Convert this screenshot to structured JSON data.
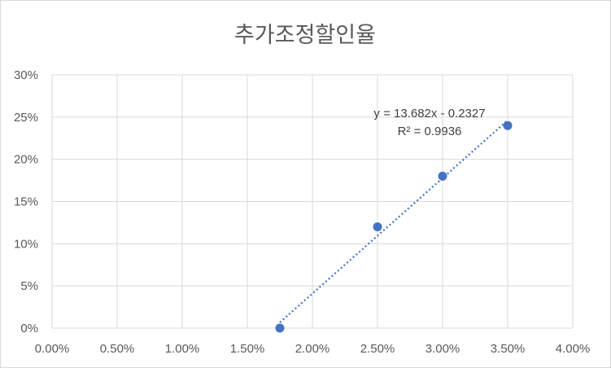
{
  "chart_data": {
    "type": "scatter",
    "title": "추가조정할인율",
    "xlabel": "",
    "ylabel": "",
    "xlim": [
      0,
      0.04
    ],
    "ylim": [
      0,
      0.3
    ],
    "x_ticks": [
      "0.00%",
      "0.50%",
      "1.00%",
      "1.50%",
      "2.00%",
      "2.50%",
      "3.00%",
      "3.50%",
      "4.00%"
    ],
    "y_ticks": [
      "0%",
      "5%",
      "10%",
      "15%",
      "20%",
      "25%",
      "30%"
    ],
    "grid": true,
    "legend": "none",
    "series": [
      {
        "x": [
          0.0175,
          0.025,
          0.03,
          0.035
        ],
        "y": [
          0.0,
          0.12,
          0.18,
          0.24
        ],
        "color": "#4472c4"
      }
    ],
    "trendline": {
      "type": "linear",
      "slope": 13.682,
      "intercept": -0.2327,
      "color": "#4472c4",
      "equation": "y = 13.682x - 0.2327",
      "r_squared": "R² = 0.9936"
    }
  }
}
